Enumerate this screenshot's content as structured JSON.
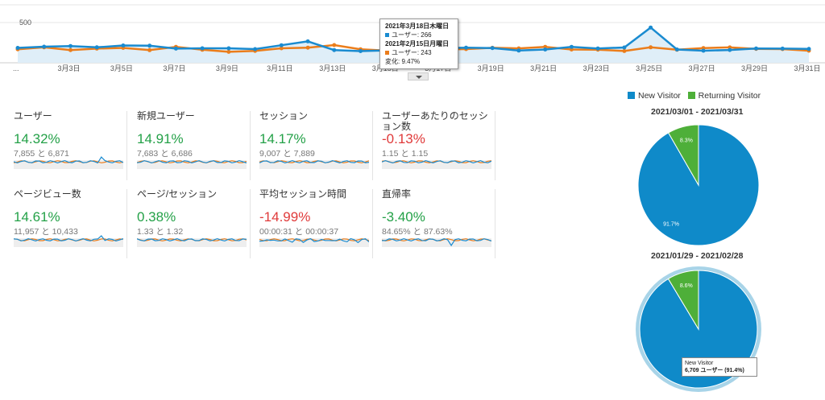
{
  "colors": {
    "blue": "#1a8bd0",
    "orange": "#eb7d1b",
    "green": "#24a148",
    "red": "#e03a3a",
    "pie_blue": "#0f8ac9",
    "pie_green": "#4eaf39"
  },
  "chart_data": [
    {
      "type": "line",
      "ylabel_tick": "500",
      "ylim": [
        0,
        520
      ],
      "x_tick_labels": [
        "...",
        "3月3日",
        "3月5日",
        "3月7日",
        "3月9日",
        "3月11日",
        "3月13日",
        "3月15日",
        "3月17日",
        "3月19日",
        "3月21日",
        "3月23日",
        "3月25日",
        "3月27日",
        "3月29日",
        "3月31日"
      ],
      "series": [
        {
          "name": "ユーザー",
          "color": "#1a8bd0",
          "values": [
            245,
            260,
            268,
            252,
            275,
            272,
            236,
            240,
            240,
            230,
            278,
            326,
            218,
            205,
            214,
            266,
            240,
            248,
            243,
            212,
            225,
            258,
            238,
            250,
            498,
            225,
            210,
            219,
            238,
            236,
            232
          ]
        },
        {
          "name": "ユーザー",
          "color": "#eb7d1b",
          "values": [
            228,
            252,
            218,
            236,
            245,
            217,
            258,
            222,
            196,
            208,
            240,
            248,
            280,
            228,
            211,
            243,
            226,
            230,
            246,
            239,
            258,
            225,
            223,
            206,
            252,
            222,
            243,
            251,
            233,
            230,
            210
          ]
        }
      ]
    },
    {
      "type": "pie",
      "title": "2021/03/01 - 2021/03/31",
      "slices": [
        {
          "name": "New Visitor",
          "value": 91.7,
          "label": "91.7%"
        },
        {
          "name": "Returning Visitor",
          "value": 8.3,
          "label": "8.3%"
        }
      ]
    },
    {
      "type": "pie",
      "title": "2021/01/29 - 2021/02/28",
      "slices": [
        {
          "name": "New Visitor",
          "value": 91.4,
          "label": ""
        },
        {
          "name": "Returning Visitor",
          "value": 8.6,
          "label": "8.6%"
        }
      ]
    }
  ],
  "tooltip": {
    "date1": "2021年3月18日木曜日",
    "val1": "ユーザー: 266",
    "date2": "2021年2月15日月曜日",
    "val2": "ユーザー: 243",
    "change": "変化: 9.47%"
  },
  "legend": {
    "new": "New Visitor",
    "returning": "Returning Visitor"
  },
  "pie_tooltip": {
    "name": "New Visitor",
    "value": "6,709 ユーザー (91.4%)"
  },
  "metrics": [
    {
      "title": "ユーザー",
      "pct": "14.32%",
      "cmp": "7,855 と 6,871",
      "dir": "up"
    },
    {
      "title": "新規ユーザー",
      "pct": "14.91%",
      "cmp": "7,683 と 6,686",
      "dir": "up"
    },
    {
      "title": "セッション",
      "pct": "14.17%",
      "cmp": "9,007 と 7,889",
      "dir": "up"
    },
    {
      "title": "ユーザーあたりのセッション数",
      "pct": "-0.13%",
      "cmp": "1.15 と 1.15",
      "dir": "down"
    },
    {
      "title": "ページビュー数",
      "pct": "14.61%",
      "cmp": "11,957 と 10,433",
      "dir": "up"
    },
    {
      "title": "ページ/セッション",
      "pct": "0.38%",
      "cmp": "1.33 と 1.32",
      "dir": "up"
    },
    {
      "title": "平均セッション時間",
      "pct": "-14.99%",
      "cmp": "00:00:31 と 00:00:37",
      "dir": "down"
    },
    {
      "title": "直帰率",
      "pct": "-3.40%",
      "cmp": "84.65% と 87.63%",
      "dir": "up"
    }
  ]
}
